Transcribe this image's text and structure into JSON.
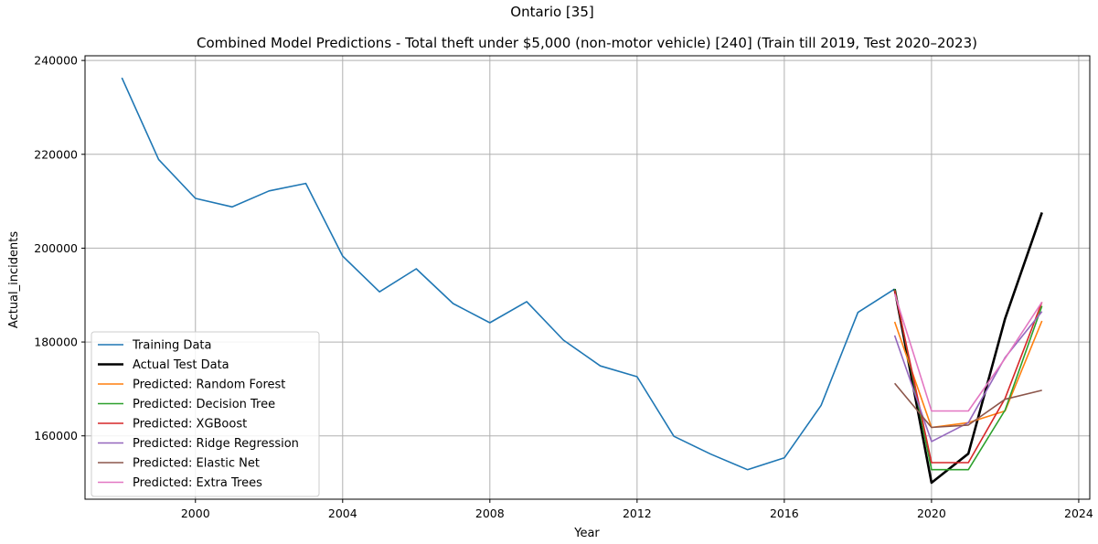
{
  "figure": {
    "suptitle": "Ontario [35]"
  },
  "chart_data": {
    "type": "line",
    "title": "Combined Model Predictions - Total theft under $5,000 (non-motor vehicle) [240] (Train till 2019, Test 2020–2023)",
    "xlabel": "Year",
    "ylabel": "Actual_incidents",
    "xlim": [
      1997,
      2024.3
    ],
    "ylim": [
      146500,
      241000
    ],
    "xticks": [
      2000,
      2004,
      2008,
      2012,
      2016,
      2020,
      2024
    ],
    "yticks": [
      160000,
      180000,
      200000,
      220000,
      240000
    ],
    "grid": true,
    "legend_position": "lower-left",
    "series": [
      {
        "name": "Training Data",
        "color": "#1f77b4",
        "width": 1.6,
        "x": [
          1998,
          1999,
          2000,
          2001,
          2002,
          2003,
          2004,
          2005,
          2006,
          2007,
          2008,
          2009,
          2010,
          2011,
          2012,
          2013,
          2014,
          2015,
          2016,
          2017,
          2018,
          2019
        ],
        "y": [
          236300,
          218900,
          210600,
          208800,
          212200,
          213800,
          198300,
          190700,
          195600,
          188200,
          184100,
          188600,
          180400,
          174900,
          172600,
          159900,
          156100,
          152800,
          155300,
          166500,
          186300,
          191300
        ]
      },
      {
        "name": "Actual Test Data",
        "color": "#000000",
        "width": 2.6,
        "x": [
          2019,
          2020,
          2021,
          2022,
          2023
        ],
        "y": [
          191300,
          150000,
          156200,
          185000,
          207600
        ]
      },
      {
        "name": "Predicted: Random Forest",
        "color": "#ff7f0e",
        "width": 1.6,
        "x": [
          2019,
          2020,
          2021,
          2022,
          2023
        ],
        "y": [
          184300,
          161800,
          162800,
          165300,
          184500
        ]
      },
      {
        "name": "Predicted: Decision Tree",
        "color": "#2ca02c",
        "width": 1.6,
        "x": [
          2019,
          2020,
          2021,
          2022,
          2023
        ],
        "y": [
          191300,
          152800,
          152800,
          165500,
          187700
        ]
      },
      {
        "name": "Predicted: XGBoost",
        "color": "#d62728",
        "width": 1.6,
        "x": [
          2019,
          2020,
          2021,
          2022,
          2023
        ],
        "y": [
          191000,
          154300,
          154300,
          168000,
          188500
        ]
      },
      {
        "name": "Predicted: Ridge Regression",
        "color": "#9467bd",
        "width": 1.6,
        "x": [
          2019,
          2020,
          2021,
          2022,
          2023
        ],
        "y": [
          181400,
          158800,
          162800,
          176700,
          186500
        ]
      },
      {
        "name": "Predicted: Elastic Net",
        "color": "#8c564b",
        "width": 1.6,
        "x": [
          2019,
          2020,
          2021,
          2022,
          2023
        ],
        "y": [
          171200,
          161800,
          162300,
          167800,
          169700
        ]
      },
      {
        "name": "Predicted: Extra Trees",
        "color": "#e377c2",
        "width": 1.6,
        "x": [
          2019,
          2020,
          2021,
          2022,
          2023
        ],
        "y": [
          190300,
          165300,
          165300,
          176500,
          188500
        ]
      }
    ]
  }
}
